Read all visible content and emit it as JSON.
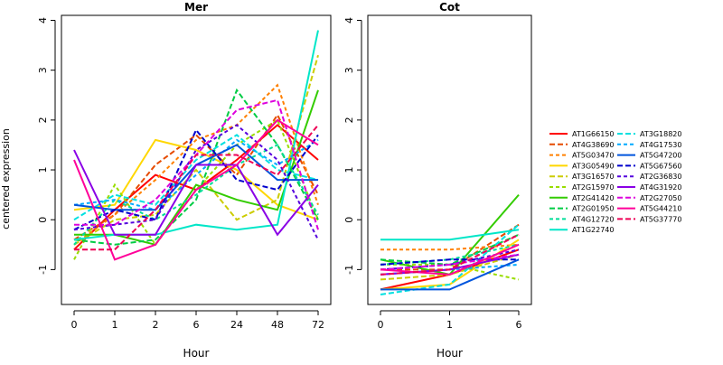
{
  "chart_data": {
    "type": "line",
    "ylabel": "centered expression",
    "colors": [
      "#ff0000",
      "#e64b00",
      "#ff8000",
      "#ffd700",
      "#cccc00",
      "#99dd00",
      "#33cc00",
      "#00cc44",
      "#00dd99",
      "#00e6c8",
      "#00e0e0",
      "#00aaff",
      "#0055dd",
      "#0000cc",
      "#5500dd",
      "#8a00e6",
      "#dd00dd",
      "#ff0099",
      "#ee0055"
    ],
    "dashes": [
      "",
      "6,3",
      "4,3",
      "",
      "6,3",
      "4,3",
      "",
      "6,3",
      "4,3",
      "",
      "6,3",
      "4,3",
      "",
      "6,3",
      "4,3",
      "",
      "6,3",
      "",
      "6,3"
    ],
    "panels": [
      {
        "title": "Mer",
        "xlabel": "Hour",
        "x": [
          "0",
          "1",
          "2",
          "6",
          "24",
          "48",
          "72"
        ],
        "ylim": [
          -1.7,
          4.1
        ],
        "yticks": [
          -1,
          0,
          1,
          2,
          3,
          4
        ],
        "series": [
          {
            "values": [
              -0.6,
              0.2,
              0.9,
              0.6,
              1.2,
              1.9,
              1.2
            ]
          },
          {
            "values": [
              -0.4,
              0.1,
              1.1,
              1.7,
              0.9,
              2.1,
              0.5
            ]
          },
          {
            "values": [
              -0.5,
              0.1,
              0.8,
              1.6,
              1.9,
              2.7,
              0.3
            ]
          },
          {
            "values": [
              0.2,
              0.3,
              1.6,
              1.4,
              1.0,
              0.3,
              0.0
            ]
          },
          {
            "values": [
              -0.5,
              0.0,
              0.1,
              1.0,
              0.0,
              0.4,
              3.3
            ]
          },
          {
            "values": [
              -0.8,
              0.7,
              -0.5,
              0.6,
              1.5,
              2.0,
              0.0
            ]
          },
          {
            "values": [
              -0.3,
              -0.3,
              -0.5,
              0.7,
              0.4,
              0.2,
              2.6
            ]
          },
          {
            "values": [
              -0.4,
              -0.5,
              -0.4,
              0.4,
              2.6,
              1.5,
              0.0
            ]
          },
          {
            "values": [
              -0.5,
              0.4,
              0.0,
              0.5,
              1.1,
              1.5,
              0.1
            ]
          },
          {
            "values": [
              -0.4,
              -0.3,
              -0.3,
              -0.1,
              -0.2,
              -0.1,
              3.8
            ]
          },
          {
            "values": [
              0.0,
              0.5,
              0.3,
              1.2,
              1.7,
              1.0,
              0.8
            ]
          },
          {
            "values": [
              0.3,
              0.4,
              0.2,
              0.9,
              1.6,
              1.1,
              1.6
            ]
          },
          {
            "values": [
              0.3,
              0.2,
              0.2,
              1.1,
              1.5,
              0.8,
              0.8
            ]
          },
          {
            "values": [
              -0.2,
              0.2,
              0.0,
              1.8,
              0.8,
              0.6,
              1.7
            ]
          },
          {
            "values": [
              -0.2,
              -0.1,
              0.0,
              1.4,
              1.9,
              1.2,
              -0.4
            ]
          },
          {
            "values": [
              1.4,
              -0.3,
              -0.3,
              1.1,
              1.1,
              -0.3,
              0.7
            ]
          },
          {
            "values": [
              -0.1,
              -0.1,
              0.4,
              1.3,
              2.2,
              2.4,
              -0.2
            ]
          },
          {
            "values": [
              1.2,
              -0.8,
              -0.5,
              0.6,
              1.1,
              2.0,
              1.5
            ]
          },
          {
            "values": [
              -0.6,
              -0.6,
              0.2,
              1.3,
              1.3,
              0.9,
              1.9
            ]
          }
        ]
      },
      {
        "title": "Cot",
        "xlabel": "Hour",
        "x": [
          "0",
          "1",
          "6"
        ],
        "ylim": [
          -1.7,
          4.1
        ],
        "yticks": [
          -1,
          0,
          1,
          2,
          3,
          4
        ],
        "series": [
          {
            "values": [
              -1.4,
              -1.1,
              -0.6
            ]
          },
          {
            "values": [
              -1.0,
              -1.0,
              -0.1
            ]
          },
          {
            "values": [
              -0.6,
              -0.6,
              -0.5
            ]
          },
          {
            "values": [
              -1.4,
              -1.3,
              -0.4
            ]
          },
          {
            "values": [
              -1.2,
              -1.1,
              -0.7
            ]
          },
          {
            "values": [
              -0.9,
              -0.9,
              -1.2
            ]
          },
          {
            "values": [
              -0.8,
              -1.1,
              0.5
            ]
          },
          {
            "values": [
              -0.8,
              -0.9,
              -0.3
            ]
          },
          {
            "values": [
              -0.9,
              -0.8,
              -0.5
            ]
          },
          {
            "values": [
              -0.4,
              -0.4,
              -0.2
            ]
          },
          {
            "values": [
              -1.5,
              -1.3,
              -0.1
            ]
          },
          {
            "values": [
              -1.1,
              -1.0,
              -0.9
            ]
          },
          {
            "values": [
              -1.4,
              -1.4,
              -0.8
            ]
          },
          {
            "values": [
              -0.9,
              -0.8,
              -0.8
            ]
          },
          {
            "values": [
              -1.0,
              -0.9,
              -0.6
            ]
          },
          {
            "values": [
              -1.1,
              -1.0,
              -0.7
            ]
          },
          {
            "values": [
              -1.0,
              -0.9,
              -0.7
            ]
          },
          {
            "values": [
              -1.0,
              -1.1,
              -0.5
            ]
          },
          {
            "values": [
              -1.1,
              -1.0,
              -0.3
            ]
          }
        ]
      }
    ],
    "legend": {
      "placement": "right",
      "entries": [
        "AT1G66150",
        "AT4G38690",
        "AT5G03470",
        "AT3G05490",
        "AT3G16570",
        "AT2G15970",
        "AT2G41420",
        "AT2G01950",
        "AT4G12720",
        "AT1G22740",
        "AT3G18820",
        "AT4G17530",
        "AT5G47200",
        "AT5G67560",
        "AT2G36830",
        "AT4G31920",
        "AT2G27050",
        "AT5G44210",
        "AT5G37770"
      ]
    }
  }
}
